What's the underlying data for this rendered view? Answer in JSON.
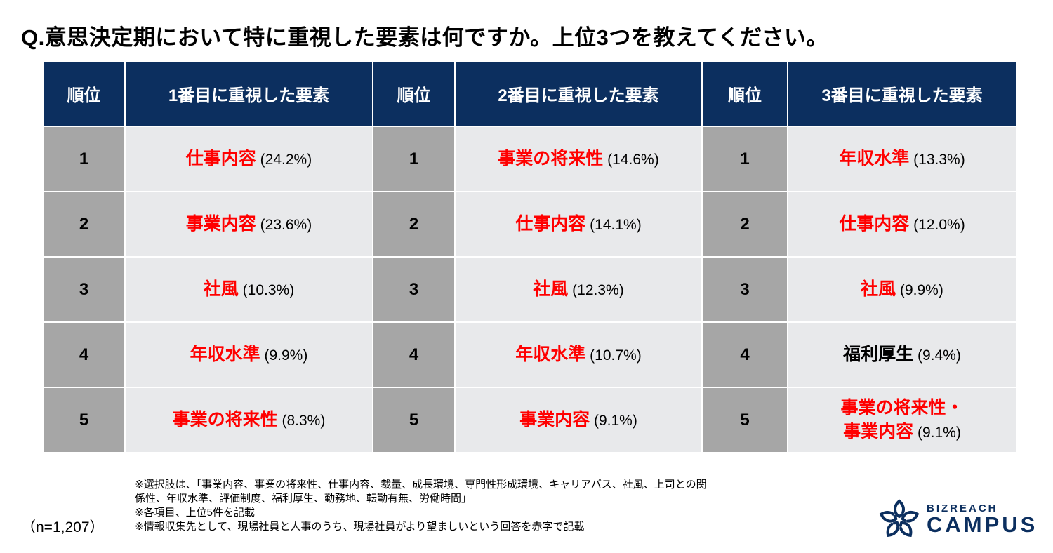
{
  "title": "Q.意思決定期において特に重視した要素は何ですか。上位3つを教えてください。",
  "colors": {
    "header_bg": "#0c2f5f",
    "rank_bg": "#a6a6a6",
    "cell_bg": "#e8e9eb",
    "highlight": "#ff0000"
  },
  "table": {
    "headers": [
      "順位",
      "1番目に重視した要素",
      "順位",
      "2番目に重視した要素",
      "順位",
      "3番目に重視した要素"
    ],
    "rows": [
      {
        "rank": "1",
        "cells": [
          {
            "name": "仕事内容",
            "pct": "(24.2%)",
            "red": true
          },
          {
            "name": "事業の将来性",
            "pct": "(14.6%)",
            "red": true
          },
          {
            "name": "年収水準",
            "pct": "(13.3%)",
            "red": true
          }
        ]
      },
      {
        "rank": "2",
        "cells": [
          {
            "name": "事業内容",
            "pct": "(23.6%)",
            "red": true
          },
          {
            "name": "仕事内容",
            "pct": "(14.1%)",
            "red": true
          },
          {
            "name": "仕事内容",
            "pct": "(12.0%)",
            "red": true
          }
        ]
      },
      {
        "rank": "3",
        "cells": [
          {
            "name": "社風",
            "pct": "(10.3%)",
            "red": true
          },
          {
            "name": "社風",
            "pct": "(12.3%)",
            "red": true
          },
          {
            "name": "社風",
            "pct": "(9.9%)",
            "red": true
          }
        ]
      },
      {
        "rank": "4",
        "cells": [
          {
            "name": "年収水準",
            "pct": "(9.9%)",
            "red": true
          },
          {
            "name": "年収水準",
            "pct": "(10.7%)",
            "red": true
          },
          {
            "name": "福利厚生",
            "pct": "(9.4%)",
            "red": false
          }
        ]
      },
      {
        "rank": "5",
        "cells": [
          {
            "name": "事業の将来性",
            "pct": "(8.3%)",
            "red": true
          },
          {
            "name": "事業内容",
            "pct": "(9.1%)",
            "red": true
          },
          {
            "name": "事業の将来性・",
            "name2": "事業内容",
            "pct": "(9.1%)",
            "red": true
          }
        ]
      }
    ]
  },
  "notes": [
    "※選択肢は、「事業内容、事業の将来性、仕事内容、裁量、成長環境、専門性形成環境、キャリアパス、社風、上司との関",
    "係性、年収水準、評価制度、福利厚生、勤務地、転勤有無、労働時間」",
    "※各項目、上位5件を記載",
    "※情報収集先として、現場社員と人事のうち、現場社員がより望ましいという回答を赤字で記載"
  ],
  "sample_size": "（n=1,207）",
  "logo": {
    "line1": "BIZREACH",
    "line2": "CAMPUS"
  }
}
